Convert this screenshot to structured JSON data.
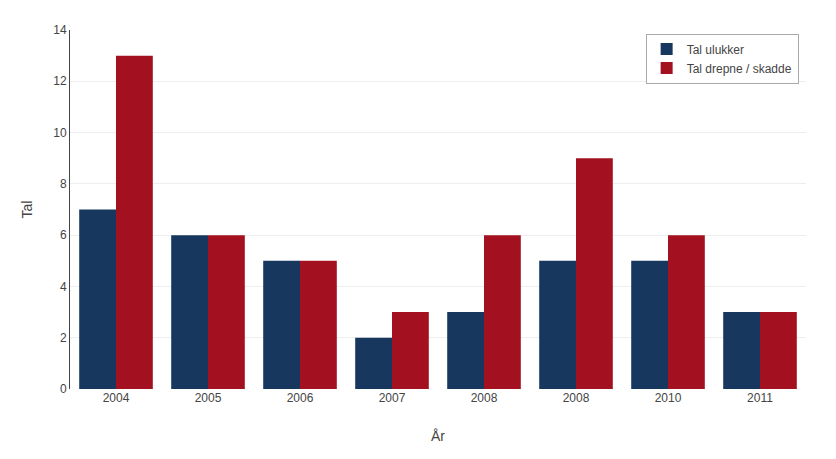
{
  "chart_data": {
    "type": "bar",
    "xlabel": "År",
    "ylabel": "Tal",
    "categories": [
      "2004",
      "2005",
      "2006",
      "2007",
      "2008",
      "2008",
      "2010",
      "2011"
    ],
    "series": [
      {
        "name": "Tal ulukker",
        "color": "#17375E",
        "values": [
          7,
          6,
          5,
          2,
          3,
          5,
          5,
          3
        ]
      },
      {
        "name": "Tal drepne / skadde",
        "color": "#A31020",
        "values": [
          13,
          6,
          5,
          3,
          6,
          9,
          6,
          3
        ]
      }
    ],
    "ylim": [
      0,
      14
    ],
    "yticks": [
      0,
      2,
      4,
      6,
      8,
      10,
      12,
      14
    ],
    "grid": true,
    "legend": "upper right"
  }
}
